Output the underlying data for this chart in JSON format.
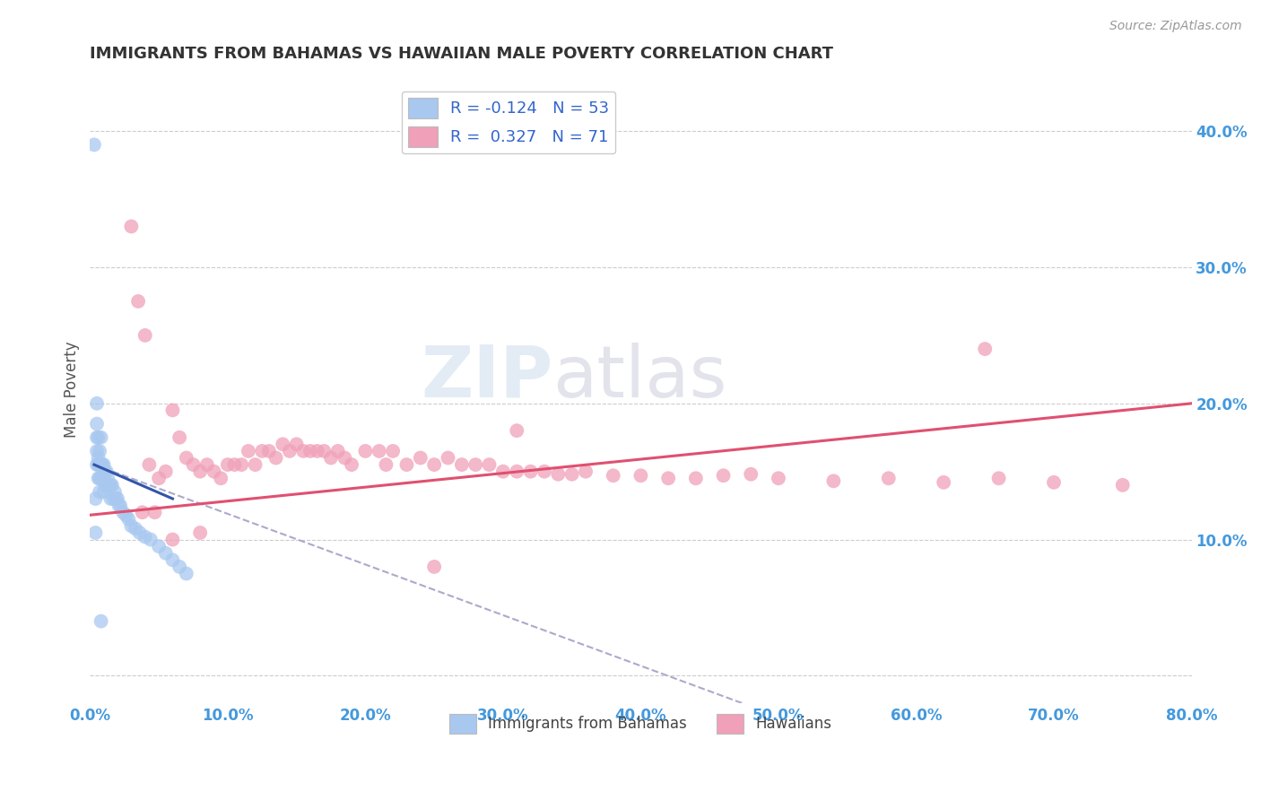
{
  "title": "IMMIGRANTS FROM BAHAMAS VS HAWAIIAN MALE POVERTY CORRELATION CHART",
  "source": "Source: ZipAtlas.com",
  "ylabel": "Male Poverty",
  "watermark_zip": "ZIP",
  "watermark_atlas": "atlas",
  "legend_r1": "-0.124",
  "legend_n1": "53",
  "legend_r2": "0.327",
  "legend_n2": "71",
  "legend_label1": "Immigrants from Bahamas",
  "legend_label2": "Hawaiians",
  "color_blue": "#A8C8F0",
  "color_pink": "#F0A0B8",
  "line_blue": "#3355AA",
  "line_pink": "#E05070",
  "line_dashed": "#AAAACC",
  "xlim": [
    0.0,
    0.8
  ],
  "ylim": [
    -0.02,
    0.44
  ],
  "xticks": [
    0.0,
    0.1,
    0.2,
    0.3,
    0.4,
    0.5,
    0.6,
    0.7,
    0.8
  ],
  "yticks": [
    0.0,
    0.1,
    0.2,
    0.3,
    0.4
  ],
  "yticklabels_right": [
    "",
    "10.0%",
    "20.0%",
    "30.0%",
    "40.0%"
  ],
  "bahamas_x": [
    0.003,
    0.004,
    0.004,
    0.005,
    0.005,
    0.005,
    0.005,
    0.005,
    0.006,
    0.006,
    0.006,
    0.006,
    0.007,
    0.007,
    0.007,
    0.007,
    0.008,
    0.008,
    0.008,
    0.009,
    0.009,
    0.01,
    0.01,
    0.01,
    0.011,
    0.011,
    0.012,
    0.012,
    0.013,
    0.014,
    0.015,
    0.015,
    0.016,
    0.017,
    0.018,
    0.019,
    0.02,
    0.021,
    0.022,
    0.024,
    0.026,
    0.028,
    0.03,
    0.033,
    0.036,
    0.04,
    0.044,
    0.05,
    0.055,
    0.06,
    0.065,
    0.07,
    0.008
  ],
  "bahamas_y": [
    0.39,
    0.13,
    0.105,
    0.2,
    0.185,
    0.175,
    0.165,
    0.155,
    0.175,
    0.16,
    0.155,
    0.145,
    0.165,
    0.155,
    0.145,
    0.135,
    0.175,
    0.155,
    0.145,
    0.155,
    0.145,
    0.155,
    0.145,
    0.135,
    0.15,
    0.14,
    0.15,
    0.14,
    0.145,
    0.14,
    0.14,
    0.13,
    0.14,
    0.13,
    0.135,
    0.13,
    0.13,
    0.125,
    0.125,
    0.12,
    0.118,
    0.115,
    0.11,
    0.108,
    0.105,
    0.102,
    0.1,
    0.095,
    0.09,
    0.085,
    0.08,
    0.075,
    0.04
  ],
  "hawaiians_x": [
    0.03,
    0.035,
    0.04,
    0.043,
    0.047,
    0.05,
    0.055,
    0.06,
    0.065,
    0.07,
    0.075,
    0.08,
    0.085,
    0.09,
    0.095,
    0.1,
    0.105,
    0.11,
    0.115,
    0.12,
    0.125,
    0.13,
    0.135,
    0.14,
    0.145,
    0.15,
    0.155,
    0.16,
    0.165,
    0.17,
    0.175,
    0.18,
    0.185,
    0.19,
    0.2,
    0.21,
    0.215,
    0.22,
    0.23,
    0.24,
    0.25,
    0.26,
    0.27,
    0.28,
    0.29,
    0.3,
    0.31,
    0.32,
    0.33,
    0.34,
    0.35,
    0.36,
    0.38,
    0.4,
    0.42,
    0.44,
    0.46,
    0.48,
    0.5,
    0.54,
    0.58,
    0.62,
    0.66,
    0.7,
    0.75,
    0.038,
    0.06,
    0.08,
    0.31,
    0.65,
    0.25
  ],
  "hawaiians_y": [
    0.33,
    0.275,
    0.25,
    0.155,
    0.12,
    0.145,
    0.15,
    0.195,
    0.175,
    0.16,
    0.155,
    0.15,
    0.155,
    0.15,
    0.145,
    0.155,
    0.155,
    0.155,
    0.165,
    0.155,
    0.165,
    0.165,
    0.16,
    0.17,
    0.165,
    0.17,
    0.165,
    0.165,
    0.165,
    0.165,
    0.16,
    0.165,
    0.16,
    0.155,
    0.165,
    0.165,
    0.155,
    0.165,
    0.155,
    0.16,
    0.155,
    0.16,
    0.155,
    0.155,
    0.155,
    0.15,
    0.15,
    0.15,
    0.15,
    0.148,
    0.148,
    0.15,
    0.147,
    0.147,
    0.145,
    0.145,
    0.147,
    0.148,
    0.145,
    0.143,
    0.145,
    0.142,
    0.145,
    0.142,
    0.14,
    0.12,
    0.1,
    0.105,
    0.18,
    0.24,
    0.08
  ],
  "blue_line_x": [
    0.003,
    0.06
  ],
  "blue_line_y": [
    0.155,
    0.13
  ],
  "pink_line_x": [
    0.0,
    0.8
  ],
  "pink_line_y": [
    0.118,
    0.2
  ],
  "dashed_line_x": [
    0.003,
    0.5
  ],
  "dashed_line_y": [
    0.155,
    -0.03
  ]
}
